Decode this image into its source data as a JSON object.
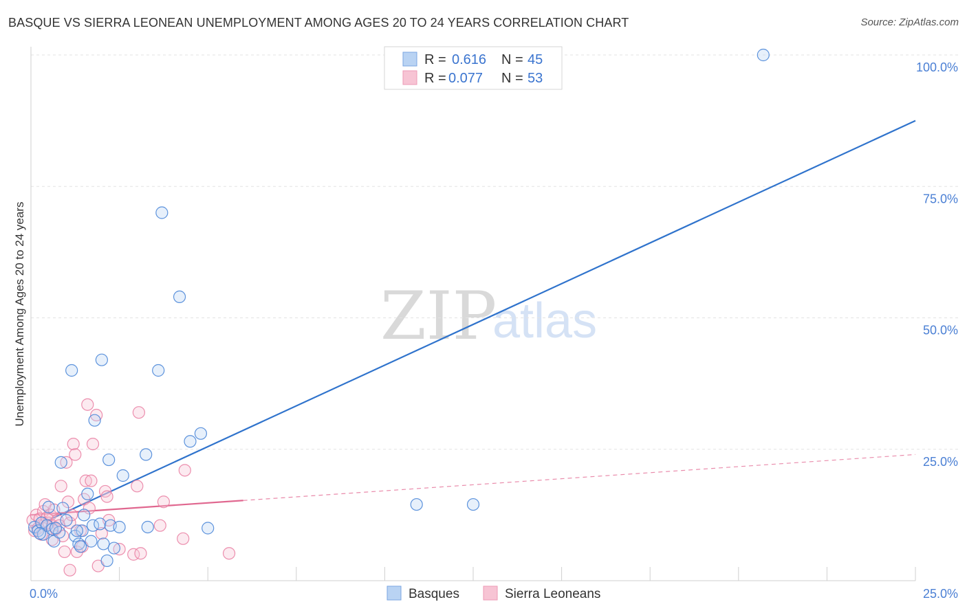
{
  "header": {
    "title": "BASQUE VS SIERRA LEONEAN UNEMPLOYMENT AMONG AGES 20 TO 24 YEARS CORRELATION CHART",
    "source": "Source: ZipAtlas.com"
  },
  "watermark": {
    "part1": "ZIP",
    "part2": "atlas"
  },
  "colors": {
    "basque": "#4a86d8",
    "basque_fill": "#b9d3f3",
    "sierra": "#e97ba0",
    "sierra_fill": "#f7c4d4",
    "grid": "#e3e3e3",
    "axis_text": "#4a7fd4"
  },
  "legend": {
    "rows": [
      {
        "r_label": "R =",
        "r_value": "0.616",
        "n_label": "N =",
        "n_value": "45"
      },
      {
        "r_label": "R =",
        "r_value": "0.077",
        "n_label": "N =",
        "n_value": "53"
      }
    ]
  },
  "chart_data": {
    "type": "scatter",
    "title": "BASQUE VS SIERRA LEONEAN UNEMPLOYMENT AMONG AGES 20 TO 24 YEARS CORRELATION CHART",
    "xlabel": "",
    "ylabel": "Unemployment Among Ages 20 to 24 years",
    "xlim": [
      0,
      25
    ],
    "ylim": [
      0,
      100
    ],
    "x_tick_labels": [
      "0.0%",
      "25.0%"
    ],
    "y_tick_labels": [
      "100.0%",
      "75.0%",
      "50.0%",
      "25.0%"
    ],
    "y_tick_values": [
      100,
      75,
      50,
      25
    ],
    "legend_position": "top-center",
    "series": [
      {
        "name": "Basques",
        "r": 0.616,
        "n": 45,
        "trend": {
          "x": [
            0,
            25
          ],
          "y": [
            10,
            87.5
          ],
          "style": "solid"
        },
        "points": [
          [
            0.1,
            10.2
          ],
          [
            0.2,
            9.5
          ],
          [
            0.3,
            11.0
          ],
          [
            0.35,
            8.8
          ],
          [
            0.45,
            10.5
          ],
          [
            0.5,
            14.0
          ],
          [
            0.6,
            9.8
          ],
          [
            0.65,
            7.5
          ],
          [
            0.8,
            9.2
          ],
          [
            0.85,
            22.5
          ],
          [
            0.9,
            13.8
          ],
          [
            1.0,
            11.5
          ],
          [
            1.15,
            40.0
          ],
          [
            1.25,
            8.5
          ],
          [
            1.35,
            7.0
          ],
          [
            1.4,
            6.5
          ],
          [
            1.45,
            9.5
          ],
          [
            1.5,
            12.5
          ],
          [
            1.6,
            16.5
          ],
          [
            1.7,
            7.5
          ],
          [
            1.75,
            10.5
          ],
          [
            1.8,
            30.5
          ],
          [
            1.95,
            10.8
          ],
          [
            2.0,
            42.0
          ],
          [
            2.05,
            7.0
          ],
          [
            2.15,
            3.8
          ],
          [
            2.2,
            23.0
          ],
          [
            2.25,
            10.5
          ],
          [
            2.35,
            6.2
          ],
          [
            2.5,
            10.2
          ],
          [
            2.6,
            20.0
          ],
          [
            3.25,
            24.0
          ],
          [
            3.3,
            10.2
          ],
          [
            3.6,
            40.0
          ],
          [
            3.7,
            70.0
          ],
          [
            4.2,
            54.0
          ],
          [
            4.5,
            26.5
          ],
          [
            4.8,
            28.0
          ],
          [
            5.0,
            10.0
          ],
          [
            10.9,
            14.5
          ],
          [
            12.5,
            14.5
          ],
          [
            20.7,
            100.0
          ],
          [
            0.25,
            9.0
          ],
          [
            0.7,
            10.0
          ],
          [
            1.3,
            9.5
          ]
        ]
      },
      {
        "name": "Sierra Leoneans",
        "r": 0.077,
        "n": 53,
        "trend": {
          "x": [
            0,
            25
          ],
          "y": [
            12.5,
            24
          ],
          "solid_until": 6.0
        },
        "points": [
          [
            0.05,
            11.5
          ],
          [
            0.1,
            9.5
          ],
          [
            0.15,
            12.5
          ],
          [
            0.2,
            10.0
          ],
          [
            0.25,
            11.8
          ],
          [
            0.3,
            8.8
          ],
          [
            0.35,
            13.2
          ],
          [
            0.4,
            10.8
          ],
          [
            0.45,
            12.0
          ],
          [
            0.5,
            11.0
          ],
          [
            0.55,
            12.5
          ],
          [
            0.6,
            10.5
          ],
          [
            0.65,
            13.5
          ],
          [
            0.7,
            9.8
          ],
          [
            0.75,
            11.5
          ],
          [
            0.8,
            10.5
          ],
          [
            0.85,
            18.0
          ],
          [
            0.9,
            8.5
          ],
          [
            0.95,
            5.5
          ],
          [
            1.0,
            22.5
          ],
          [
            1.05,
            15.0
          ],
          [
            1.1,
            11.0
          ],
          [
            1.1,
            2.0
          ],
          [
            1.15,
            12.5
          ],
          [
            1.2,
            26.0
          ],
          [
            1.25,
            24.0
          ],
          [
            1.3,
            5.5
          ],
          [
            1.4,
            9.5
          ],
          [
            1.45,
            6.5
          ],
          [
            1.5,
            15.5
          ],
          [
            1.55,
            19.0
          ],
          [
            1.6,
            33.5
          ],
          [
            1.65,
            13.8
          ],
          [
            1.7,
            19.0
          ],
          [
            1.75,
            26.0
          ],
          [
            1.85,
            31.5
          ],
          [
            1.9,
            2.8
          ],
          [
            2.0,
            9.0
          ],
          [
            2.1,
            17.0
          ],
          [
            2.15,
            16.0
          ],
          [
            2.2,
            11.5
          ],
          [
            2.5,
            6.0
          ],
          [
            2.9,
            5.0
          ],
          [
            3.0,
            18.0
          ],
          [
            3.05,
            32.0
          ],
          [
            3.1,
            5.2
          ],
          [
            3.65,
            10.5
          ],
          [
            3.75,
            15.0
          ],
          [
            4.3,
            8.0
          ],
          [
            4.35,
            21.0
          ],
          [
            5.6,
            5.2
          ],
          [
            0.4,
            14.5
          ],
          [
            0.6,
            7.8
          ]
        ]
      }
    ]
  },
  "bottom_legend": [
    {
      "label": "Basques"
    },
    {
      "label": "Sierra Leoneans"
    }
  ]
}
